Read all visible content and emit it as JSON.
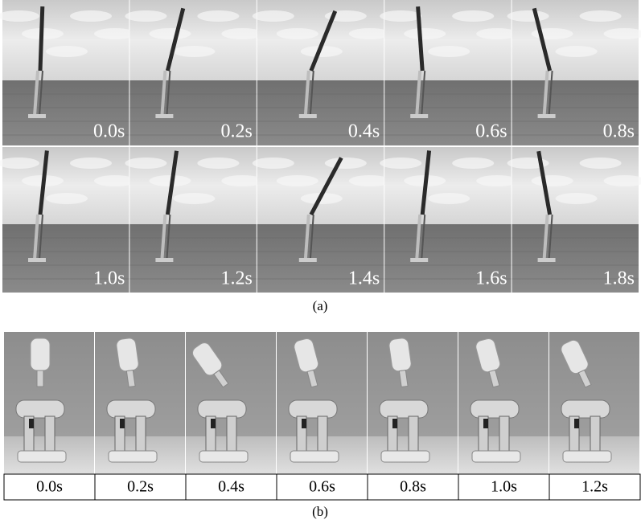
{
  "panel_a": {
    "frames": [
      "0.0s",
      "0.2s",
      "0.4s",
      "0.6s",
      "0.8s",
      "1.0s",
      "1.2s",
      "1.4s",
      "1.6s",
      "1.8s"
    ],
    "caption": "(a)"
  },
  "panel_b": {
    "frames": [
      "0.0s",
      "0.2s",
      "0.4s",
      "0.6s",
      "0.8s",
      "1.0s",
      "1.2s"
    ],
    "caption": "(b)"
  }
}
